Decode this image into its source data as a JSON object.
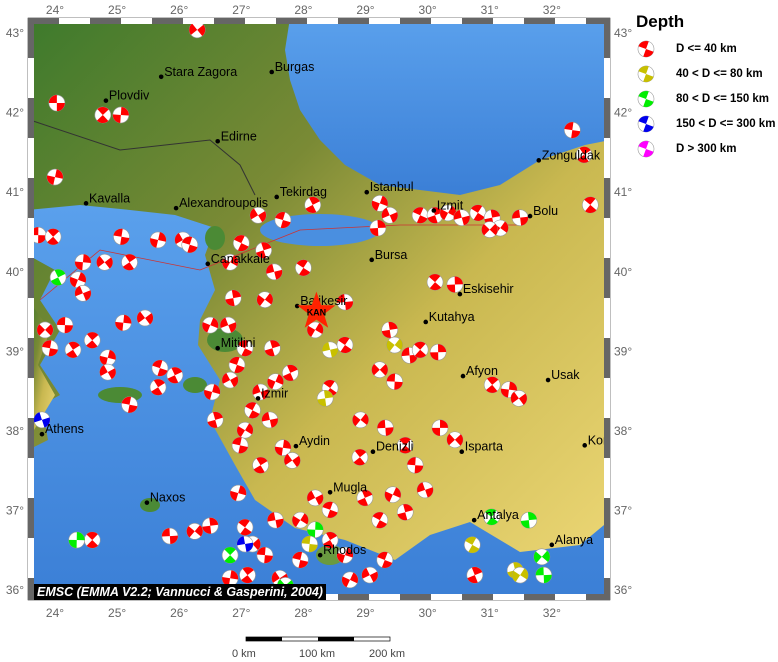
{
  "map": {
    "lon_range": [
      23.55,
      32.95
    ],
    "lat_range": [
      35.85,
      43.2
    ],
    "lon_ticks": [
      24,
      25,
      26,
      27,
      28,
      29,
      30,
      31,
      32
    ],
    "lat_ticks": [
      36,
      37,
      38,
      39,
      40,
      41,
      42,
      43
    ],
    "degree_symbol": "°",
    "colors": {
      "sea": "#4a8fe0",
      "land_low": "#3f7a2a",
      "land_high": "#e9d06a",
      "frame": "#666666"
    }
  },
  "cities": [
    {
      "name": "Stara Zagora",
      "lon": 25.71,
      "lat": 42.45
    },
    {
      "name": "Burgas",
      "lon": 27.49,
      "lat": 42.51
    },
    {
      "name": "Plovdiv",
      "lon": 24.82,
      "lat": 42.15
    },
    {
      "name": "Edirne",
      "lon": 26.62,
      "lat": 41.64
    },
    {
      "name": "Kavalla",
      "lon": 24.5,
      "lat": 40.86
    },
    {
      "name": "Alexandroupolis",
      "lon": 25.95,
      "lat": 40.8
    },
    {
      "name": "Tekirdag",
      "lon": 27.57,
      "lat": 40.94
    },
    {
      "name": "Istanbul",
      "lon": 29.02,
      "lat": 41.0
    },
    {
      "name": "Zonguldak",
      "lon": 31.79,
      "lat": 41.4
    },
    {
      "name": "Izmit",
      "lon": 30.1,
      "lat": 40.77
    },
    {
      "name": "Bolu",
      "lon": 31.65,
      "lat": 40.7
    },
    {
      "name": "Canakkale",
      "lon": 26.46,
      "lat": 40.1
    },
    {
      "name": "Bursa",
      "lon": 29.1,
      "lat": 40.15
    },
    {
      "name": "Eskisehir",
      "lon": 30.52,
      "lat": 39.72
    },
    {
      "name": "Balikesir",
      "lon": 27.9,
      "lat": 39.57
    },
    {
      "name": "Kutahya",
      "lon": 29.97,
      "lat": 39.37
    },
    {
      "name": "Mitilini",
      "lon": 26.62,
      "lat": 39.04
    },
    {
      "name": "Afyon",
      "lon": 30.57,
      "lat": 38.69
    },
    {
      "name": "Usak",
      "lon": 31.94,
      "lat": 38.64
    },
    {
      "name": "Izmir",
      "lon": 27.27,
      "lat": 38.41
    },
    {
      "name": "Athens",
      "lon": 23.79,
      "lat": 37.96
    },
    {
      "name": "Aydin",
      "lon": 27.88,
      "lat": 37.81
    },
    {
      "name": "Denizli",
      "lon": 29.12,
      "lat": 37.74
    },
    {
      "name": "Isparta",
      "lon": 30.55,
      "lat": 37.74
    },
    {
      "name": "Konya",
      "lon": 32.53,
      "lat": 37.82
    },
    {
      "name": "Naxos",
      "lon": 25.48,
      "lat": 37.1
    },
    {
      "name": "Mugla",
      "lon": 28.43,
      "lat": 37.23
    },
    {
      "name": "Antalya",
      "lon": 30.75,
      "lat": 36.88
    },
    {
      "name": "Alanya",
      "lon": 32.0,
      "lat": 36.57
    },
    {
      "name": "Rhodos",
      "lon": 28.27,
      "lat": 36.44
    }
  ],
  "station": {
    "code": "KAN",
    "lon": 28.21,
    "lat": 39.5,
    "color": "#ff2200"
  },
  "legend": {
    "title": "Depth",
    "items": [
      {
        "label": "D <= 40 km",
        "color": "#ff0000"
      },
      {
        "label": "40 < D <= 80 km",
        "color": "#c8c000"
      },
      {
        "label": "80 < D <= 150 km",
        "color": "#00ee00"
      },
      {
        "label": "150 < D <= 300 km",
        "color": "#0000ee"
      },
      {
        "label": "D > 300 km",
        "color": "#ff00ff"
      }
    ]
  },
  "events": [
    [
      24.03,
      42.12,
      0
    ],
    [
      24.77,
      41.97,
      0
    ],
    [
      25.06,
      41.97,
      0
    ],
    [
      26.29,
      43.04,
      0
    ],
    [
      32.33,
      41.78,
      0
    ],
    [
      32.52,
      41.47,
      0
    ],
    [
      24.0,
      41.19,
      0
    ],
    [
      27.27,
      40.71,
      0
    ],
    [
      27.67,
      40.65,
      0
    ],
    [
      28.15,
      40.84,
      0
    ],
    [
      29.23,
      40.86,
      0
    ],
    [
      29.39,
      40.71,
      0
    ],
    [
      29.88,
      40.71,
      0
    ],
    [
      30.12,
      40.71,
      0
    ],
    [
      30.33,
      40.74,
      0
    ],
    [
      30.55,
      40.68,
      0
    ],
    [
      30.81,
      40.74,
      0
    ],
    [
      31.04,
      40.68,
      0
    ],
    [
      31.17,
      40.55,
      0
    ],
    [
      31.49,
      40.68,
      0
    ],
    [
      32.62,
      40.84,
      0
    ],
    [
      29.2,
      40.55,
      0
    ],
    [
      31.0,
      40.53,
      0
    ],
    [
      23.73,
      40.46,
      0
    ],
    [
      23.97,
      40.44,
      0
    ],
    [
      24.45,
      40.12,
      0
    ],
    [
      24.8,
      40.12,
      0
    ],
    [
      25.07,
      40.44,
      0
    ],
    [
      25.2,
      40.12,
      0
    ],
    [
      25.66,
      40.4,
      0
    ],
    [
      26.06,
      40.4,
      0
    ],
    [
      26.17,
      40.34,
      0
    ],
    [
      24.05,
      39.93,
      2
    ],
    [
      24.37,
      39.9,
      0
    ],
    [
      24.45,
      39.73,
      0
    ],
    [
      27.0,
      40.36,
      0
    ],
    [
      27.36,
      40.27,
      0
    ],
    [
      26.82,
      40.12,
      0
    ],
    [
      27.53,
      40.0,
      0
    ],
    [
      28.0,
      40.05,
      0
    ],
    [
      26.87,
      39.67,
      0
    ],
    [
      27.38,
      39.65,
      0
    ],
    [
      28.67,
      39.62,
      0
    ],
    [
      30.12,
      39.87,
      0
    ],
    [
      30.44,
      39.84,
      0
    ],
    [
      23.84,
      39.27,
      0
    ],
    [
      24.16,
      39.33,
      0
    ],
    [
      24.6,
      39.14,
      0
    ],
    [
      25.1,
      39.36,
      0
    ],
    [
      25.45,
      39.42,
      0
    ],
    [
      23.92,
      39.04,
      0
    ],
    [
      24.29,
      39.02,
      0
    ],
    [
      24.85,
      38.92,
      0
    ],
    [
      24.85,
      38.74,
      0
    ],
    [
      25.69,
      38.79,
      0
    ],
    [
      25.93,
      38.7,
      0
    ],
    [
      26.5,
      39.33,
      0
    ],
    [
      26.79,
      39.33,
      0
    ],
    [
      27.06,
      39.04,
      0
    ],
    [
      27.5,
      39.04,
      0
    ],
    [
      28.19,
      39.27,
      0
    ],
    [
      28.43,
      39.02,
      1
    ],
    [
      28.67,
      39.08,
      0
    ],
    [
      29.39,
      39.27,
      0
    ],
    [
      29.47,
      39.08,
      1
    ],
    [
      29.71,
      38.95,
      0
    ],
    [
      29.88,
      39.02,
      0
    ],
    [
      30.17,
      38.99,
      0
    ],
    [
      29.23,
      38.77,
      0
    ],
    [
      29.47,
      38.62,
      0
    ],
    [
      31.04,
      38.58,
      0
    ],
    [
      31.31,
      38.52,
      0
    ],
    [
      31.47,
      38.41,
      0
    ],
    [
      25.2,
      38.33,
      0
    ],
    [
      25.66,
      38.55,
      0
    ],
    [
      26.53,
      38.49,
      0
    ],
    [
      26.82,
      38.64,
      0
    ],
    [
      26.93,
      38.83,
      0
    ],
    [
      27.79,
      38.73,
      0
    ],
    [
      27.55,
      38.62,
      0
    ],
    [
      27.31,
      38.49,
      0
    ],
    [
      27.18,
      38.26,
      0
    ],
    [
      26.58,
      38.14,
      0
    ],
    [
      27.06,
      38.01,
      0
    ],
    [
      27.46,
      38.14,
      0
    ],
    [
      28.43,
      38.54,
      0
    ],
    [
      28.35,
      38.41,
      1
    ],
    [
      28.92,
      38.14,
      0
    ],
    [
      29.32,
      38.04,
      0
    ],
    [
      29.64,
      37.82,
      0
    ],
    [
      30.2,
      38.04,
      0
    ],
    [
      30.44,
      37.89,
      0
    ],
    [
      29.8,
      37.57,
      0
    ],
    [
      28.91,
      37.67,
      0
    ],
    [
      27.67,
      37.79,
      0
    ],
    [
      27.82,
      37.63,
      0
    ],
    [
      26.98,
      37.82,
      0
    ],
    [
      27.31,
      37.57,
      0
    ],
    [
      26.95,
      37.22,
      0
    ],
    [
      28.19,
      37.16,
      0
    ],
    [
      28.43,
      37.01,
      0
    ],
    [
      28.99,
      37.16,
      0
    ],
    [
      29.44,
      37.2,
      0
    ],
    [
      29.96,
      37.26,
      0
    ],
    [
      29.23,
      36.88,
      0
    ],
    [
      29.64,
      36.98,
      0
    ],
    [
      27.95,
      36.88,
      0
    ],
    [
      27.55,
      36.88,
      0
    ],
    [
      27.06,
      36.79,
      0
    ],
    [
      26.5,
      36.81,
      0
    ],
    [
      26.25,
      36.74,
      0
    ],
    [
      25.85,
      36.68,
      0
    ],
    [
      24.6,
      36.63,
      0
    ],
    [
      24.35,
      36.63,
      2
    ],
    [
      27.18,
      36.58,
      0
    ],
    [
      27.38,
      36.44,
      0
    ],
    [
      27.1,
      36.19,
      0
    ],
    [
      26.82,
      36.15,
      0
    ],
    [
      27.62,
      36.15,
      0
    ],
    [
      27.95,
      36.38,
      0
    ],
    [
      28.43,
      36.63,
      0
    ],
    [
      28.67,
      36.44,
      0
    ],
    [
      29.07,
      36.19,
      0
    ],
    [
      29.31,
      36.38,
      0
    ],
    [
      30.76,
      36.19,
      0
    ],
    [
      28.75,
      36.13,
      0
    ],
    [
      23.79,
      38.14,
      3
    ],
    [
      30.72,
      36.57,
      1
    ],
    [
      31.41,
      36.25,
      1
    ],
    [
      31.49,
      36.19,
      1
    ],
    [
      27.06,
      36.58,
      3
    ],
    [
      31.03,
      36.92,
      2
    ],
    [
      31.63,
      36.88,
      2
    ],
    [
      31.84,
      36.42,
      2
    ],
    [
      31.87,
      36.19,
      2
    ],
    [
      26.82,
      36.44,
      2
    ],
    [
      28.19,
      36.76,
      2
    ],
    [
      27.71,
      36.06,
      2
    ],
    [
      28.1,
      36.58,
      1
    ]
  ],
  "credit": "EMSC (EMMA V2.2; Vannucci & Gasperini, 2004)",
  "scale_bar": {
    "labels": [
      "0 km",
      "100 km",
      "200 km"
    ]
  }
}
